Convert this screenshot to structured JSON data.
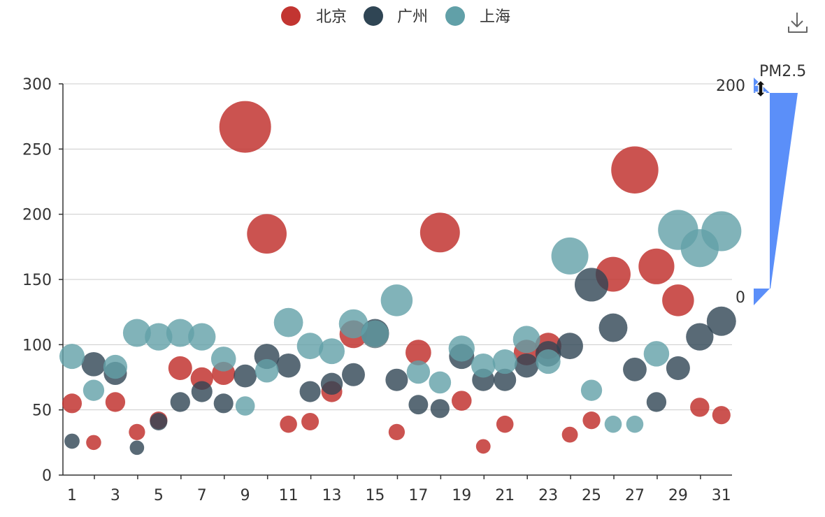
{
  "legend": {
    "items": [
      {
        "name": "北京",
        "color": "#c23531"
      },
      {
        "name": "广州",
        "color": "#2f4554"
      },
      {
        "name": "上海",
        "color": "#61a0a8"
      }
    ]
  },
  "toolbox": {
    "icon": "download-icon"
  },
  "visual_map": {
    "title": "PM2.5",
    "max_label": "200",
    "min_label": "0",
    "color": "#5b8ff9",
    "selected_max": 200,
    "handle_icon": "resize-vertical-icon"
  },
  "chart_data": {
    "type": "scatter",
    "x": [
      1,
      2,
      3,
      4,
      5,
      6,
      7,
      8,
      9,
      10,
      11,
      12,
      13,
      14,
      15,
      16,
      17,
      18,
      19,
      20,
      21,
      22,
      23,
      24,
      25,
      26,
      27,
      28,
      29,
      30,
      31
    ],
    "x_tick_labels": [
      "1",
      "3",
      "5",
      "7",
      "9",
      "11",
      "13",
      "15",
      "17",
      "19",
      "21",
      "23",
      "25",
      "27",
      "29",
      "31"
    ],
    "ylim": [
      0,
      300
    ],
    "y_ticks": [
      0,
      50,
      100,
      150,
      200,
      250,
      300
    ],
    "grid": true,
    "legend_position": "top-center",
    "size_encoding": "bubble size varies with AQI value",
    "series": [
      {
        "name": "北京",
        "color": "#c23531",
        "values": [
          55,
          25,
          56,
          33,
          42,
          82,
          74,
          78,
          267,
          185,
          39,
          41,
          64,
          108,
          108,
          33,
          94,
          186,
          57,
          22,
          39,
          94,
          99,
          31,
          42,
          154,
          234,
          160,
          134,
          52,
          46
        ]
      },
      {
        "name": "广州",
        "color": "#2f4554",
        "values": [
          26,
          85,
          78,
          21,
          41,
          56,
          64,
          55,
          76,
          91,
          84,
          64,
          70,
          77,
          109,
          73,
          54,
          51,
          91,
          73,
          73,
          84,
          93,
          99,
          146,
          113,
          81,
          56,
          82,
          106,
          118
        ]
      },
      {
        "name": "上海",
        "color": "#61a0a8",
        "values": [
          91,
          65,
          83,
          109,
          106,
          109,
          106,
          89,
          53,
          80,
          117,
          99,
          95,
          116,
          108,
          134,
          79,
          71,
          97,
          84,
          87,
          104,
          87,
          168,
          65,
          39,
          39,
          93,
          188,
          174,
          187
        ]
      }
    ]
  }
}
